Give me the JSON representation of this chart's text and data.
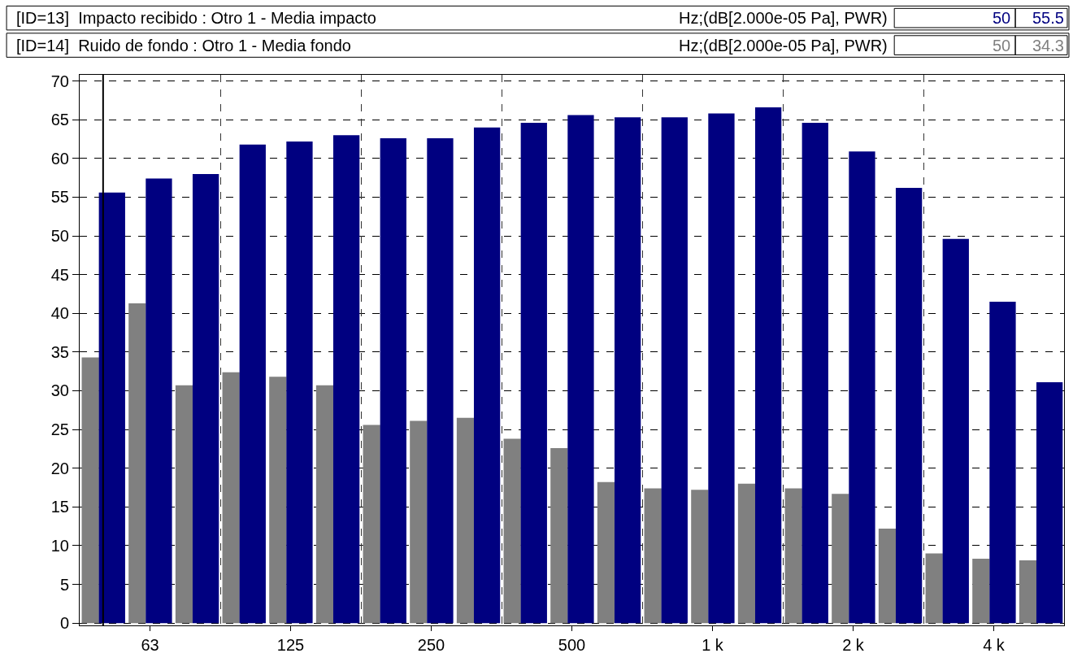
{
  "chart_data": {
    "type": "bar",
    "categories": [
      null,
      "63",
      null,
      null,
      "125",
      null,
      null,
      "250",
      null,
      null,
      "500",
      null,
      null,
      "1 k",
      null,
      null,
      "2 k",
      null,
      null,
      "4 k",
      null
    ],
    "series": [
      {
        "color": "#808080",
        "values": [
          34.3,
          41.3,
          30.7,
          32.4,
          31.8,
          30.7,
          25.6,
          26.1,
          26.5,
          23.8,
          22.6,
          18.2,
          17.4,
          17.2,
          18.0,
          17.4,
          16.7,
          12.2,
          9.0,
          8.3,
          8.1
        ]
      },
      {
        "color": "#000080",
        "values": [
          55.6,
          57.4,
          58.0,
          61.8,
          62.2,
          63.0,
          62.6,
          62.6,
          64.0,
          64.6,
          65.6,
          65.3,
          65.3,
          65.8,
          66.6,
          64.6,
          60.9,
          56.2,
          49.6,
          41.5,
          31.1
        ]
      }
    ],
    "ylim": [
      -0.3,
      70.8
    ],
    "yticks": [
      0,
      5,
      10,
      15,
      20,
      25,
      30,
      35,
      40,
      45,
      50,
      55,
      60,
      65,
      70
    ],
    "grid": true,
    "annotations": [
      "[ID=13]  Impacto recibido : Otro 1 - Media impacto",
      "Hz;(dB[2.000e-05 Pa], PWR)",
      "50",
      "55.5",
      "[ID=14]  Ruido de fondo : Otro 1 - Media fondo",
      "Hz;(dB[2.000e-05 Pa], PWR)",
      "50",
      "34.3"
    ]
  }
}
